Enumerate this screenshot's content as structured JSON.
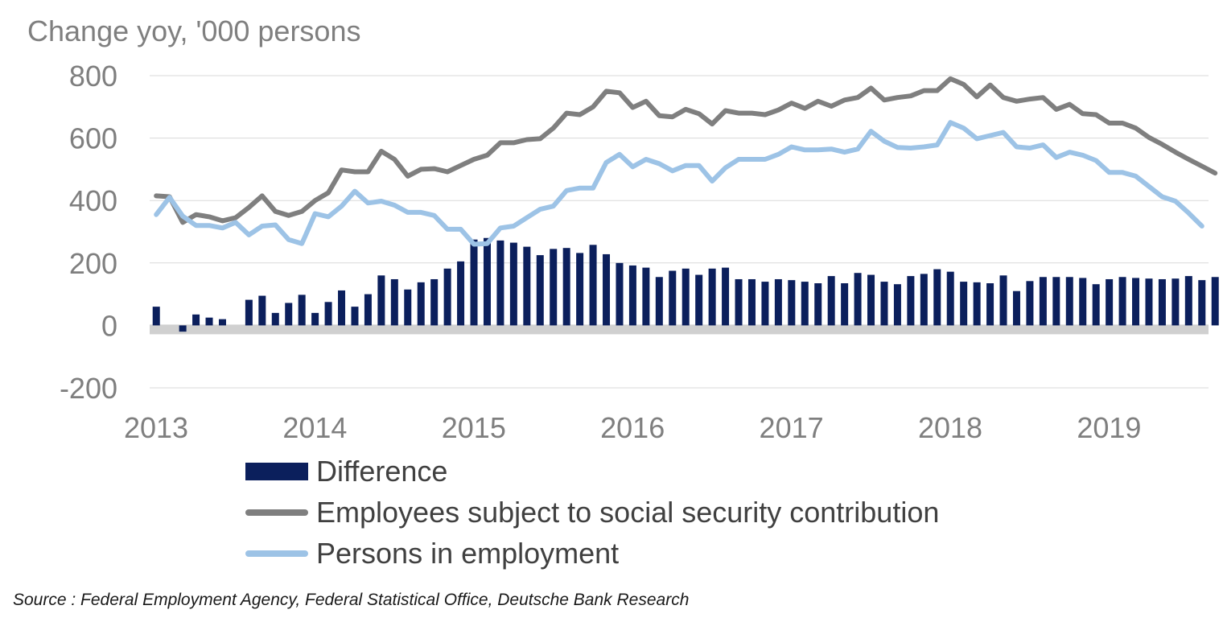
{
  "colors": {
    "difference": "#0b1f5c",
    "employees": "#7f7f7f",
    "persons": "#9dc3e6",
    "grid": "#d9d9d9",
    "zero_line": "#d0d0d0",
    "axis_text": "#7f7f7f"
  },
  "chart_data": {
    "type": "bar+line",
    "title": "",
    "ylabel": "Change yoy, '000 persons",
    "xlabel": "",
    "ylim": [
      -200,
      800
    ],
    "yticks": [
      "-200",
      "0",
      "200",
      "400",
      "600",
      "800"
    ],
    "xticks": [
      "2013",
      "2014",
      "2015",
      "2016",
      "2017",
      "2018",
      "2019"
    ],
    "x_start_year": 2013,
    "frequency": "monthly",
    "grid": true,
    "legend_position": "bottom",
    "series": [
      {
        "name": "Difference",
        "kind": "bar",
        "values": [
          60,
          null,
          -20,
          35,
          25,
          20,
          null,
          82,
          95,
          40,
          72,
          98,
          40,
          75,
          112,
          60,
          100,
          160,
          148,
          115,
          138,
          148,
          182,
          205,
          275,
          280,
          272,
          265,
          252,
          225,
          245,
          248,
          232,
          258,
          228,
          200,
          192,
          185,
          155,
          175,
          182,
          162,
          182,
          185,
          148,
          148,
          140,
          148,
          145,
          140,
          135,
          158,
          135,
          168,
          162,
          140,
          132,
          158,
          165,
          180,
          172,
          140,
          138,
          135,
          160,
          110,
          142,
          155,
          155,
          155,
          152,
          132,
          148,
          155,
          152,
          150,
          148,
          150,
          158,
          145,
          155,
          168
        ]
      },
      {
        "name": "Employees subject to social security contribution",
        "kind": "line",
        "values": [
          415,
          412,
          330,
          355,
          348,
          335,
          345,
          378,
          415,
          365,
          352,
          365,
          400,
          425,
          498,
          492,
          492,
          558,
          532,
          478,
          500,
          502,
          492,
          512,
          532,
          545,
          585,
          585,
          595,
          598,
          632,
          680,
          675,
          700,
          750,
          745,
          698,
          718,
          672,
          668,
          692,
          678,
          645,
          688,
          680,
          680,
          675,
          690,
          712,
          695,
          718,
          702,
          722,
          730,
          760,
          722,
          730,
          735,
          752,
          752,
          790,
          772,
          732,
          770,
          730,
          718,
          725,
          730,
          692,
          708,
          678,
          675,
          648,
          648,
          632,
          602,
          580,
          555,
          532,
          510,
          488
        ]
      },
      {
        "name": "Persons in employment",
        "kind": "line",
        "values": [
          355,
          410,
          350,
          320,
          320,
          312,
          330,
          290,
          318,
          322,
          275,
          262,
          358,
          348,
          382,
          430,
          392,
          398,
          385,
          362,
          362,
          352,
          308,
          308,
          260,
          262,
          312,
          318,
          345,
          372,
          382,
          432,
          440,
          440,
          522,
          548,
          508,
          532,
          518,
          495,
          512,
          512,
          462,
          505,
          532,
          532,
          532,
          548,
          572,
          562,
          562,
          565,
          555,
          565,
          622,
          590,
          570,
          568,
          572,
          578,
          650,
          632,
          598,
          608,
          618,
          572,
          568,
          578,
          538,
          555,
          545,
          528,
          490,
          490,
          478,
          445,
          412,
          398,
          360,
          318
        ]
      }
    ]
  },
  "legend": {
    "items": [
      "Difference",
      "Employees subject to social security contribution",
      "Persons in employment"
    ]
  },
  "source": "Source : Federal Employment Agency, Federal Statistical Office, Deutsche Bank Research"
}
